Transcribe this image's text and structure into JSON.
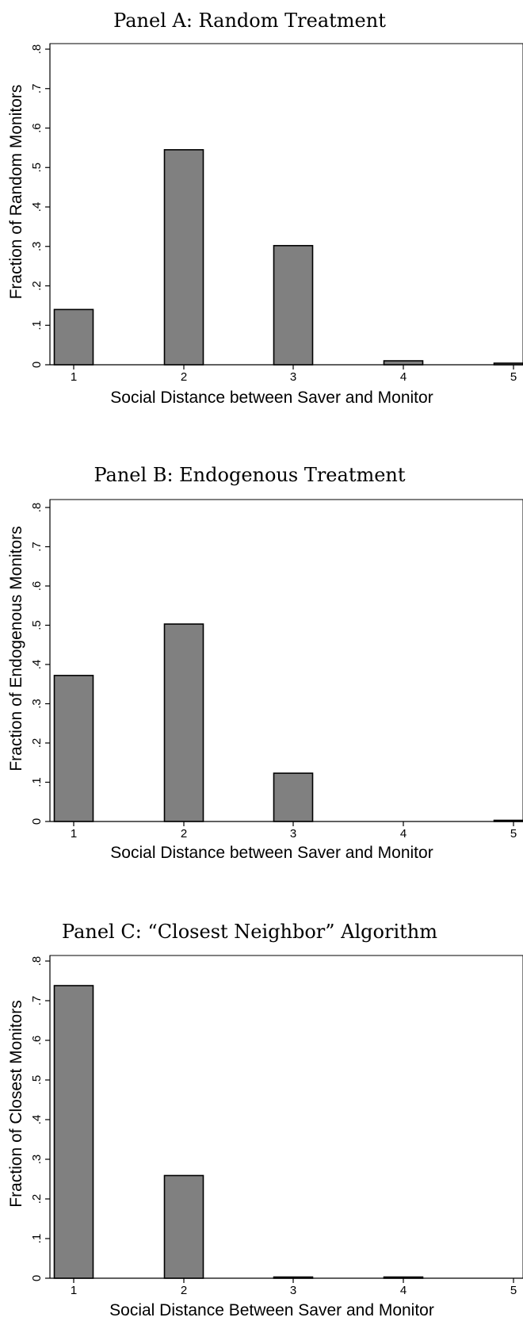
{
  "chart_data": [
    {
      "type": "bar",
      "title": "Panel A: Random Treatment",
      "xlabel": "Social Distance between Saver and Monitor",
      "ylabel": "Fraction of Random Monitors",
      "categories": [
        "1",
        "2",
        "3",
        "4",
        "5"
      ],
      "values": [
        0.14,
        0.545,
        0.302,
        0.01,
        0.004
      ],
      "ylim": [
        0,
        0.8
      ],
      "yticks": [
        "0",
        ".1",
        ".2",
        ".3",
        ".4",
        ".5",
        ".6",
        ".7",
        ".8"
      ],
      "bar_color": "#808080",
      "grid": false
    },
    {
      "type": "bar",
      "title": "Panel B: Endogenous Treatment",
      "xlabel": "Social Distance between Saver and Monitor",
      "ylabel": "Fraction of Endogenous Monitors",
      "categories": [
        "1",
        "2",
        "3",
        "4",
        "5"
      ],
      "values": [
        0.372,
        0.503,
        0.123,
        0.0,
        0.003
      ],
      "ylim": [
        0,
        0.8
      ],
      "yticks": [
        "0",
        ".1",
        ".2",
        ".3",
        ".4",
        ".5",
        ".6",
        ".7",
        ".8"
      ],
      "bar_color": "#808080",
      "grid": false
    },
    {
      "type": "bar",
      "title": "Panel C: “Closest Neighbor” Algorithm",
      "xlabel": "Social Distance Between Saver and Monitor",
      "ylabel": "Fraction of Closest Monitors",
      "categories": [
        "1",
        "2",
        "3",
        "4",
        "5"
      ],
      "values": [
        0.738,
        0.259,
        0.003,
        0.003,
        0.0
      ],
      "ylim": [
        0,
        0.8
      ],
      "yticks": [
        "0",
        ".1",
        ".2",
        ".3",
        ".4",
        ".5",
        ".6",
        ".7",
        ".8"
      ],
      "bar_color": "#808080",
      "grid": false
    }
  ]
}
